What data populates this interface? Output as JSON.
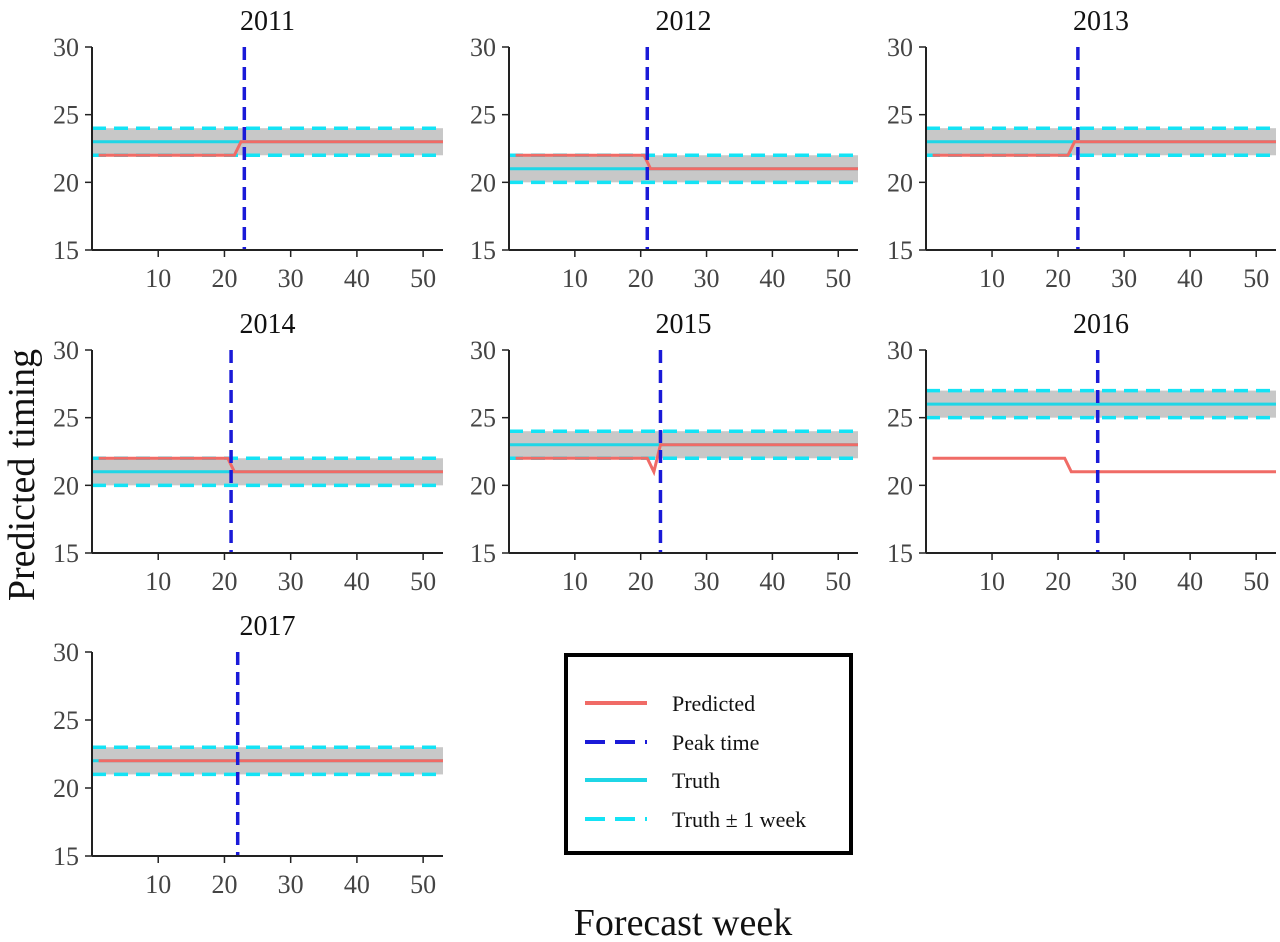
{
  "figure": {
    "xlabel": "Forecast week",
    "ylabel": "Predicted timing"
  },
  "colors": {
    "predicted": "#f06b66",
    "peak": "#1a1ad8",
    "truth": "#1fd6e6",
    "truth_band_dash": "#14e3f5",
    "band_fill": "#c8c8c8"
  },
  "legend": {
    "items": [
      {
        "key": "predicted",
        "label": "Predicted",
        "style": "solid"
      },
      {
        "key": "peak",
        "label": "Peak time",
        "style": "dashed"
      },
      {
        "key": "truth",
        "label": "Truth",
        "style": "solid"
      },
      {
        "key": "truth_band_dash",
        "label": "Truth ± 1 week",
        "style": "dashed"
      }
    ]
  },
  "chart_data": [
    {
      "type": "line",
      "title": "2011",
      "xlim": [
        0,
        53
      ],
      "ylim": [
        15,
        30
      ],
      "xticks": [
        10,
        20,
        30,
        40,
        50
      ],
      "yticks": [
        15,
        20,
        25,
        30
      ],
      "truth": 23,
      "peak_week": 23,
      "predicted": {
        "x": [
          1,
          21.5,
          22.5,
          53
        ],
        "y": [
          22,
          22,
          23,
          23
        ]
      }
    },
    {
      "type": "line",
      "title": "2012",
      "xlim": [
        0,
        53
      ],
      "ylim": [
        15,
        30
      ],
      "xticks": [
        10,
        20,
        30,
        40,
        50
      ],
      "yticks": [
        15,
        20,
        25,
        30
      ],
      "truth": 21,
      "peak_week": 21,
      "predicted": {
        "x": [
          1,
          20.5,
          21.5,
          53
        ],
        "y": [
          22,
          22,
          21,
          21
        ]
      }
    },
    {
      "type": "line",
      "title": "2013",
      "xlim": [
        0,
        53
      ],
      "ylim": [
        15,
        30
      ],
      "xticks": [
        10,
        20,
        30,
        40,
        50
      ],
      "yticks": [
        15,
        20,
        25,
        30
      ],
      "truth": 23,
      "peak_week": 23,
      "predicted": {
        "x": [
          1,
          21.5,
          22.5,
          53
        ],
        "y": [
          22,
          22,
          23,
          23
        ]
      }
    },
    {
      "type": "line",
      "title": "2014",
      "xlim": [
        0,
        53
      ],
      "ylim": [
        15,
        30
      ],
      "xticks": [
        10,
        20,
        30,
        40,
        50
      ],
      "yticks": [
        15,
        20,
        25,
        30
      ],
      "truth": 21,
      "peak_week": 21,
      "predicted": {
        "x": [
          1,
          20.5,
          21.5,
          53
        ],
        "y": [
          22,
          22,
          21,
          21
        ]
      }
    },
    {
      "type": "line",
      "title": "2015",
      "xlim": [
        0,
        53
      ],
      "ylim": [
        15,
        30
      ],
      "xticks": [
        10,
        20,
        30,
        40,
        50
      ],
      "yticks": [
        15,
        20,
        25,
        30
      ],
      "truth": 23,
      "peak_week": 23,
      "predicted": {
        "x": [
          1,
          21,
          22,
          23,
          53
        ],
        "y": [
          22,
          22,
          21,
          23,
          23
        ]
      }
    },
    {
      "type": "line",
      "title": "2016",
      "xlim": [
        0,
        53
      ],
      "ylim": [
        15,
        30
      ],
      "xticks": [
        10,
        20,
        30,
        40,
        50
      ],
      "yticks": [
        15,
        20,
        25,
        30
      ],
      "truth": 26,
      "peak_week": 26,
      "predicted": {
        "x": [
          1,
          21,
          22,
          53
        ],
        "y": [
          22,
          22,
          21,
          21
        ]
      }
    },
    {
      "type": "line",
      "title": "2017",
      "xlim": [
        0,
        53
      ],
      "ylim": [
        15,
        30
      ],
      "xticks": [
        10,
        20,
        30,
        40,
        50
      ],
      "yticks": [
        15,
        20,
        25,
        30
      ],
      "truth": 22,
      "peak_week": 22,
      "predicted": {
        "x": [
          1,
          53
        ],
        "y": [
          22,
          22
        ]
      }
    }
  ]
}
